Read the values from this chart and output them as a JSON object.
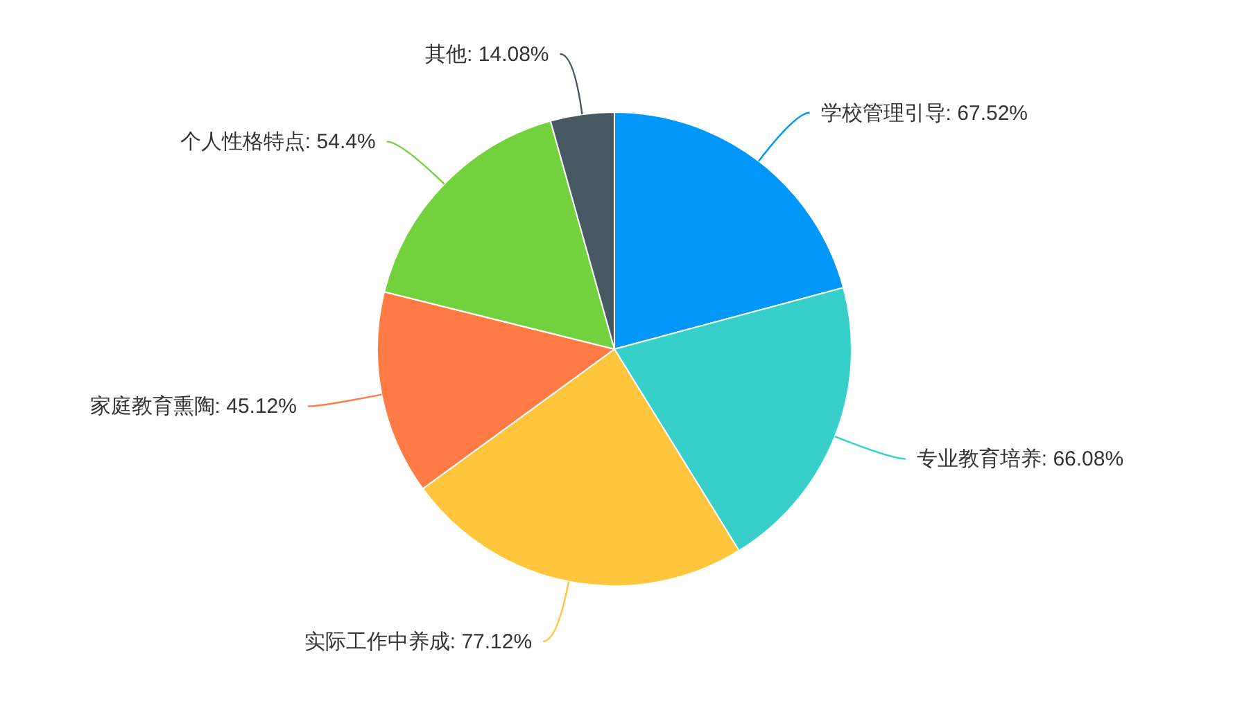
{
  "chart_data": {
    "type": "pie",
    "categories": [
      "学校管理引导",
      "专业教育培养",
      "实际工作中养成",
      "家庭教育熏陶",
      "个人性格特点",
      "其他"
    ],
    "values": [
      67.52,
      66.08,
      77.12,
      45.12,
      54.4,
      14.08
    ],
    "value_labels": [
      "67.52%",
      "66.08%",
      "77.12%",
      "45.12%",
      "54.4%",
      "14.08%"
    ],
    "colors": [
      "#0096fa",
      "#36cfc9",
      "#ffc53d",
      "#ff7a45",
      "#73d13d",
      "#475863"
    ]
  }
}
